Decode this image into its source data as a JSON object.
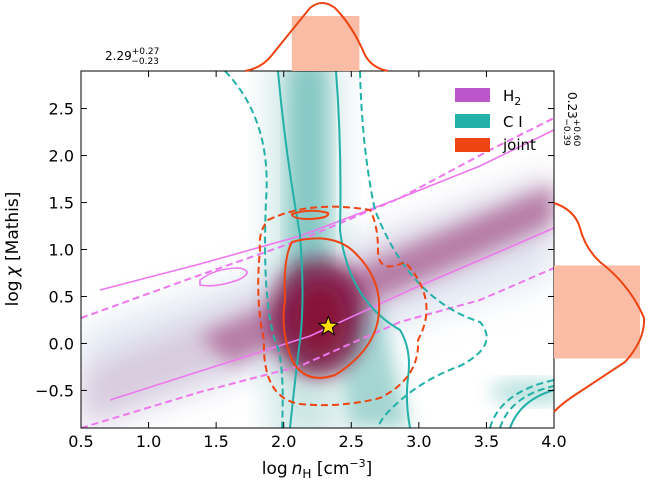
{
  "chart_data": {
    "type": "scatter",
    "xlim": [
      0.5,
      4.0
    ],
    "ylim": [
      -0.9,
      2.9
    ],
    "xticks": [
      "0.5",
      "1.0",
      "1.5",
      "2.0",
      "2.5",
      "3.0",
      "3.5",
      "4.0"
    ],
    "yticks": [
      "−0.5",
      "0.0",
      "0.5",
      "1.0",
      "1.5",
      "2.0",
      "2.5"
    ],
    "xtick_values": [
      0.5,
      1.0,
      1.5,
      2.0,
      2.5,
      3.0,
      3.5,
      4.0
    ],
    "ytick_values": [
      -0.5,
      0.0,
      0.5,
      1.0,
      1.5,
      2.0,
      2.5
    ],
    "xlabel": {
      "prefix": "log",
      "var": "n",
      "sub": "H",
      "unit": " [cm",
      "exp": "−3",
      "close": "]"
    },
    "ylabel": {
      "prefix": "log",
      "var": "χ",
      "rest": " [Mathis]"
    },
    "legend_position": "top-right",
    "legend": [
      {
        "name": "H",
        "sub": "2",
        "color": "#bb55cc"
      },
      {
        "name": "C I",
        "sub": "",
        "color": "#22b0a8"
      },
      {
        "name": "joint",
        "sub": "",
        "color": "#ee4411"
      }
    ],
    "best_fit": {
      "x": 2.33,
      "y": 0.18,
      "marker": "star",
      "color": "#ffdd00"
    },
    "x_marginal": {
      "median": "2.29",
      "plus": "+0.27",
      "minus": "−0.23",
      "band": [
        2.06,
        2.56
      ]
    },
    "y_marginal": {
      "median": "0.23",
      "plus": "+0.60",
      "minus": "−0.39",
      "band": [
        -0.16,
        0.83
      ]
    },
    "colors": {
      "h2": "#ee77ee",
      "ci": "#22b0a8",
      "joint": "#ee4411",
      "band": "#fbbca6",
      "density": "#8a1457",
      "ci_density": "#5bb4ae"
    }
  }
}
